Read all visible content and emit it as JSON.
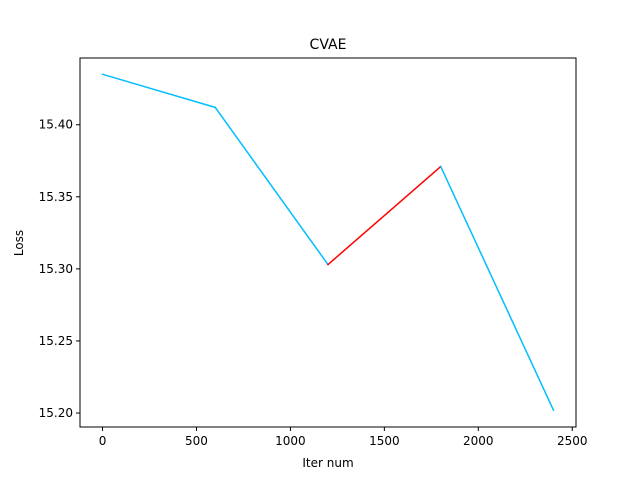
{
  "chart_data": {
    "type": "line",
    "title": "CVAE",
    "xlabel": "Iter num",
    "ylabel": "Loss",
    "x": [
      0,
      600,
      1200,
      1800,
      2400
    ],
    "y": [
      15.435,
      15.412,
      15.303,
      15.371,
      15.202
    ],
    "segment_colors": [
      "#00BFFF",
      "#00BFFF",
      "#FF0000",
      "#00BFFF"
    ],
    "xlim": [
      -120,
      2520
    ],
    "ylim": [
      15.1903,
      15.4463
    ],
    "xticks": [
      0,
      500,
      1000,
      1500,
      2000,
      2500
    ],
    "xtick_labels": [
      "0",
      "500",
      "1000",
      "1500",
      "2000",
      "2500"
    ],
    "yticks": [
      15.2,
      15.25,
      15.3,
      15.35,
      15.4
    ],
    "ytick_labels": [
      "15.20",
      "15.25",
      "15.30",
      "15.35",
      "15.40"
    ],
    "grid": false,
    "legend": "none"
  }
}
